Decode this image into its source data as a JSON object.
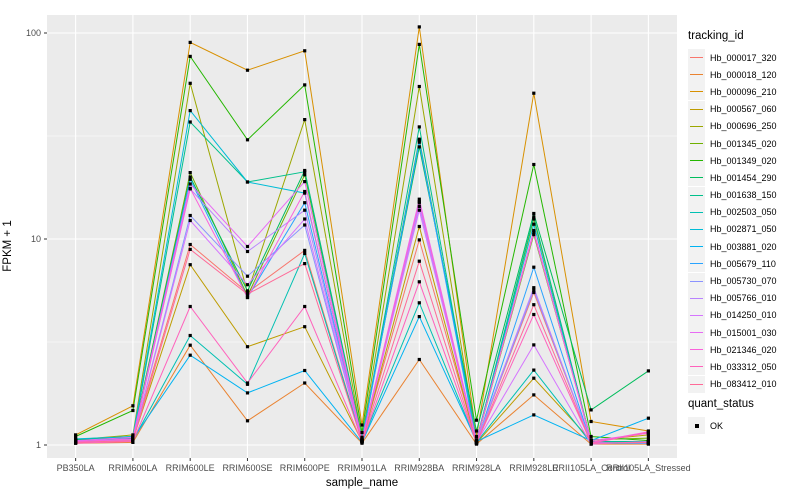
{
  "chart_data": {
    "type": "line",
    "title": "",
    "xlabel": "sample_name",
    "ylabel": "FPKM + 1",
    "y_scale": "log10",
    "y_ticks": [
      1,
      10,
      100
    ],
    "y_minor_ticks": [
      3.162,
      31.623
    ],
    "ylim": [
      0.95,
      123
    ],
    "grid": "ggplot gray panel with white gridlines",
    "legend_position": "right",
    "x_categories": [
      "PB350LA",
      "RRIM600LA",
      "RRIM600LE",
      "RRIM600SE",
      "RRIM600PE",
      "RRIM901LA",
      "RRIM928BA",
      "RRIM928LA",
      "RRIM928LE",
      "RRII105LA_Control",
      "RRII105LA_Stressed"
    ],
    "legends": {
      "tracking_id": {
        "title": "tracking_id"
      },
      "quant_status": {
        "title": "quant_status",
        "items": [
          {
            "label": "OK",
            "marker": "black-square"
          }
        ]
      }
    },
    "point_marker": "small black square on every data point",
    "series": [
      {
        "name": "Hb_000017_320",
        "color": "#F8766D",
        "values": [
          1.05,
          1.08,
          9.4,
          5.5,
          8.8,
          1.05,
          9.9,
          1.03,
          5.5,
          1.03,
          1.02
        ]
      },
      {
        "name": "Hb_000018_120",
        "color": "#EA8331",
        "values": [
          1.02,
          1.03,
          3.05,
          1.31,
          2.0,
          1.02,
          2.6,
          1.01,
          1.75,
          1.01,
          1.01
        ]
      },
      {
        "name": "Hb_000096_210",
        "color": "#D89000",
        "values": [
          1.12,
          1.55,
          90,
          66,
          82,
          1.25,
          107,
          1.1,
          51,
          1.3,
          1.17
        ]
      },
      {
        "name": "Hb_000567_060",
        "color": "#BE9C00",
        "values": [
          1.04,
          1.06,
          7.5,
          3.0,
          3.75,
          1.04,
          11.5,
          1.02,
          2.11,
          1.05,
          1.12
        ]
      },
      {
        "name": "Hb_000696_250",
        "color": "#9CA700",
        "values": [
          1.06,
          1.12,
          57,
          5.5,
          38,
          1.08,
          55,
          1.05,
          12.5,
          1.04,
          1.03
        ]
      },
      {
        "name": "Hb_001345_020",
        "color": "#6FB000",
        "values": [
          1.05,
          1.09,
          21,
          5.3,
          20.5,
          1.06,
          30.5,
          1.04,
          10.5,
          1.06,
          1.08
        ]
      },
      {
        "name": "Hb_001349_020",
        "color": "#24B700",
        "values": [
          1.1,
          1.47,
          77,
          30.3,
          56,
          1.15,
          88,
          1.32,
          23,
          1.1,
          1.05
        ]
      },
      {
        "name": "Hb_001454_290",
        "color": "#00BD5C",
        "values": [
          1.06,
          1.1,
          20,
          5.6,
          21.5,
          1.09,
          28,
          1.17,
          13.3,
          1.48,
          2.29
        ]
      },
      {
        "name": "Hb_001638_150",
        "color": "#00C08B",
        "values": [
          1.05,
          1.08,
          37,
          18.9,
          21.2,
          1.06,
          35,
          1.05,
          12.8,
          1.04,
          1.04
        ]
      },
      {
        "name": "Hb_002503_050",
        "color": "#00C0B2",
        "values": [
          1.04,
          1.05,
          3.4,
          1.97,
          8.5,
          1.04,
          4.9,
          1.03,
          2.31,
          1.02,
          1.02
        ]
      },
      {
        "name": "Hb_002871_050",
        "color": "#00BCD6",
        "values": [
          1.07,
          1.1,
          42,
          18.9,
          16.7,
          1.07,
          30,
          1.06,
          11.8,
          1.03,
          1.03
        ]
      },
      {
        "name": "Hb_003881_020",
        "color": "#00B3F2",
        "values": [
          1.05,
          1.07,
          2.73,
          1.79,
          2.3,
          1.03,
          4.2,
          1.04,
          1.4,
          1.05,
          1.35
        ]
      },
      {
        "name": "Hb_005679_110",
        "color": "#29A3FF",
        "values": [
          1.04,
          1.06,
          19.5,
          5.2,
          15,
          1.05,
          29.5,
          1.02,
          7.3,
          1.02,
          1.02
        ]
      },
      {
        "name": "Hb_005730_070",
        "color": "#8B93FF",
        "values": [
          1.03,
          1.05,
          13,
          6.6,
          11.7,
          1.04,
          15,
          1.03,
          5.65,
          1.03,
          1.02
        ]
      },
      {
        "name": "Hb_005766_010",
        "color": "#B983FF",
        "values": [
          1.04,
          1.07,
          17.5,
          8.7,
          13.8,
          1.05,
          14.4,
          1.04,
          5.8,
          1.02,
          1.03
        ]
      },
      {
        "name": "Hb_014250_010",
        "color": "#D575FE",
        "values": [
          1.03,
          1.06,
          12.3,
          6.0,
          12.5,
          1.04,
          13.8,
          1.03,
          3.06,
          1.01,
          1.04
        ]
      },
      {
        "name": "Hb_015001_030",
        "color": "#E76BF3",
        "values": [
          1.05,
          1.09,
          18.5,
          9.2,
          19,
          1.06,
          15.6,
          1.05,
          10.7,
          1.05,
          1.14
        ]
      },
      {
        "name": "Hb_021346_020",
        "color": "#FA62DB",
        "values": [
          1.04,
          1.07,
          17.6,
          5.2,
          17,
          1.05,
          15.2,
          1.04,
          11,
          1.03,
          1.16
        ]
      },
      {
        "name": "Hb_033312_050",
        "color": "#FF62BC",
        "values": [
          1.02,
          1.04,
          4.7,
          2.0,
          4.7,
          1.03,
          6.2,
          1.02,
          4.3,
          1.02,
          1.15
        ]
      },
      {
        "name": "Hb_083412_010",
        "color": "#FF6A98",
        "values": [
          1.03,
          1.05,
          8.9,
          5.4,
          7.6,
          1.04,
          7.8,
          1.02,
          4.8,
          1.02,
          1.03
        ]
      }
    ]
  },
  "colors": {
    "panel_bg": "#EBEBEB",
    "gridline": "#FFFFFF",
    "legend_key_bg": "#F2F2F2",
    "tick_label": "#4D4D4D",
    "axis_title": "#000000",
    "point": "#000000"
  }
}
